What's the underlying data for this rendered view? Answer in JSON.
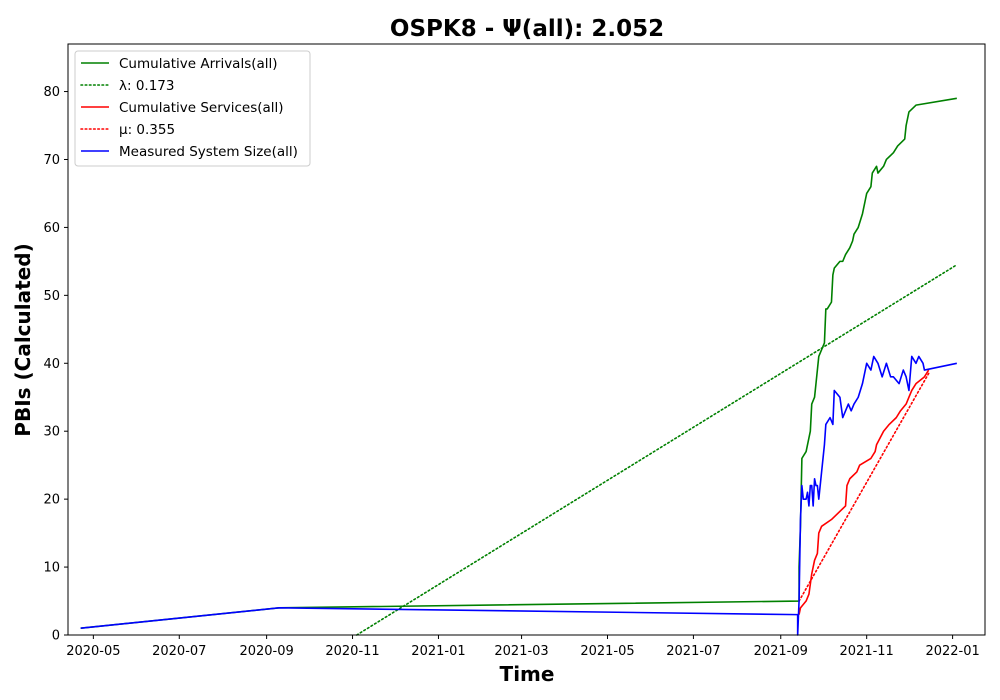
{
  "chart_data": {
    "type": "line",
    "title": "OSPK8 -  Ψ(all): 2.052",
    "xlabel": "Time",
    "ylabel": "PBIs (Calculated)",
    "x_type": "date",
    "xlim": [
      "2020-04-13",
      "2022-01-24"
    ],
    "ylim": [
      0,
      87
    ],
    "x_ticks": [
      "2020-05-01",
      "2020-07-01",
      "2020-09-01",
      "2020-11-01",
      "2021-01-01",
      "2021-03-01",
      "2021-05-01",
      "2021-07-01",
      "2021-09-01",
      "2021-11-01",
      "2022-01-01"
    ],
    "x_tick_labels": [
      "2020-05",
      "2020-07",
      "2020-09",
      "2020-11",
      "2021-01",
      "2021-03",
      "2021-05",
      "2021-07",
      "2021-09",
      "2021-11",
      "2022-01"
    ],
    "y_ticks": [
      0,
      10,
      20,
      30,
      40,
      50,
      60,
      70,
      80
    ],
    "y_tick_labels": [
      "0",
      "10",
      "20",
      "30",
      "40",
      "50",
      "60",
      "70",
      "80"
    ],
    "grid": false,
    "legend_position": "top-left",
    "series": [
      {
        "name": "Cumulative Arrivals(all)",
        "color": "#008000",
        "style": "solid",
        "points": [
          [
            "2020-04-22",
            1
          ],
          [
            "2020-09-10",
            4
          ],
          [
            "2021-09-14",
            5
          ],
          [
            "2021-09-14",
            10
          ],
          [
            "2021-09-15",
            16
          ],
          [
            "2021-09-16",
            26
          ],
          [
            "2021-09-19",
            27
          ],
          [
            "2021-09-21",
            29
          ],
          [
            "2021-09-22",
            30
          ],
          [
            "2021-09-23",
            34
          ],
          [
            "2021-09-25",
            35
          ],
          [
            "2021-09-26",
            37
          ],
          [
            "2021-09-28",
            41
          ],
          [
            "2021-09-30",
            42
          ],
          [
            "2021-10-02",
            43
          ],
          [
            "2021-10-03",
            48
          ],
          [
            "2021-10-04",
            48
          ],
          [
            "2021-10-07",
            49
          ],
          [
            "2021-10-08",
            53
          ],
          [
            "2021-10-09",
            54
          ],
          [
            "2021-10-13",
            55
          ],
          [
            "2021-10-15",
            55
          ],
          [
            "2021-10-17",
            56
          ],
          [
            "2021-10-20",
            57
          ],
          [
            "2021-10-22",
            58
          ],
          [
            "2021-10-23",
            59
          ],
          [
            "2021-10-26",
            60
          ],
          [
            "2021-10-29",
            62
          ],
          [
            "2021-10-31",
            64
          ],
          [
            "2021-11-01",
            65
          ],
          [
            "2021-11-04",
            66
          ],
          [
            "2021-11-05",
            68
          ],
          [
            "2021-11-08",
            69
          ],
          [
            "2021-11-09",
            68
          ],
          [
            "2021-11-13",
            69
          ],
          [
            "2021-11-15",
            70
          ],
          [
            "2021-11-20",
            71
          ],
          [
            "2021-11-23",
            72
          ],
          [
            "2021-11-28",
            73
          ],
          [
            "2021-11-29",
            75
          ],
          [
            "2021-12-01",
            77
          ],
          [
            "2021-12-06",
            78
          ],
          [
            "2022-01-04",
            79
          ]
        ]
      },
      {
        "name": "λ: 0.173",
        "color": "#008000",
        "style": "dotted",
        "points": [
          [
            "2020-11-04",
            0
          ],
          [
            "2022-01-04",
            54.5
          ]
        ]
      },
      {
        "name": "Cumulative Services(all)",
        "color": "#ff0000",
        "style": "solid",
        "points": [
          [
            "2021-09-14",
            3
          ],
          [
            "2021-09-15",
            4
          ],
          [
            "2021-09-19",
            5
          ],
          [
            "2021-09-21",
            6
          ],
          [
            "2021-09-23",
            9
          ],
          [
            "2021-09-25",
            11
          ],
          [
            "2021-09-27",
            12
          ],
          [
            "2021-09-28",
            15
          ],
          [
            "2021-09-30",
            16
          ],
          [
            "2021-10-07",
            17
          ],
          [
            "2021-10-17",
            19
          ],
          [
            "2021-10-18",
            22
          ],
          [
            "2021-10-20",
            23
          ],
          [
            "2021-10-25",
            24
          ],
          [
            "2021-10-27",
            25
          ],
          [
            "2021-11-04",
            26
          ],
          [
            "2021-11-07",
            27
          ],
          [
            "2021-11-08",
            28
          ],
          [
            "2021-11-13",
            30
          ],
          [
            "2021-11-17",
            31
          ],
          [
            "2021-11-22",
            32
          ],
          [
            "2021-11-25",
            33
          ],
          [
            "2021-11-29",
            34
          ],
          [
            "2021-12-01",
            35
          ],
          [
            "2021-12-03",
            36
          ],
          [
            "2021-12-06",
            37
          ],
          [
            "2021-12-12",
            38
          ],
          [
            "2021-12-15",
            39
          ]
        ]
      },
      {
        "name": "μ: 0.355",
        "color": "#ff0000",
        "style": "dotted",
        "points": [
          [
            "2021-09-14",
            5
          ],
          [
            "2021-12-15",
            38.5
          ]
        ]
      },
      {
        "name": "Measured System Size(all)",
        "color": "#0000ff",
        "style": "solid",
        "points": [
          [
            "2020-04-22",
            1
          ],
          [
            "2020-09-10",
            4
          ],
          [
            "2021-09-13",
            3
          ],
          [
            "2021-09-13",
            0
          ],
          [
            "2021-09-14",
            5
          ],
          [
            "2021-09-15",
            17
          ],
          [
            "2021-09-16",
            22
          ],
          [
            "2021-09-17",
            20
          ],
          [
            "2021-09-19",
            20
          ],
          [
            "2021-09-20",
            21
          ],
          [
            "2021-09-21",
            19
          ],
          [
            "2021-09-22",
            22
          ],
          [
            "2021-09-23",
            22
          ],
          [
            "2021-09-24",
            19
          ],
          [
            "2021-09-25",
            23
          ],
          [
            "2021-09-26",
            22
          ],
          [
            "2021-09-27",
            22
          ],
          [
            "2021-09-28",
            20
          ],
          [
            "2021-09-30",
            24
          ],
          [
            "2021-10-01",
            26
          ],
          [
            "2021-10-02",
            28
          ],
          [
            "2021-10-03",
            31
          ],
          [
            "2021-10-06",
            32
          ],
          [
            "2021-10-08",
            31
          ],
          [
            "2021-10-09",
            36
          ],
          [
            "2021-10-13",
            35
          ],
          [
            "2021-10-15",
            32
          ],
          [
            "2021-10-17",
            33
          ],
          [
            "2021-10-19",
            34
          ],
          [
            "2021-10-21",
            33
          ],
          [
            "2021-10-23",
            34
          ],
          [
            "2021-10-26",
            35
          ],
          [
            "2021-10-29",
            37
          ],
          [
            "2021-11-01",
            40
          ],
          [
            "2021-11-04",
            39
          ],
          [
            "2021-11-06",
            41
          ],
          [
            "2021-11-09",
            40
          ],
          [
            "2021-11-12",
            38
          ],
          [
            "2021-11-15",
            40
          ],
          [
            "2021-11-18",
            38
          ],
          [
            "2021-11-20",
            38
          ],
          [
            "2021-11-24",
            37
          ],
          [
            "2021-11-27",
            39
          ],
          [
            "2021-11-29",
            38
          ],
          [
            "2021-12-01",
            36
          ],
          [
            "2021-12-03",
            41
          ],
          [
            "2021-12-06",
            40
          ],
          [
            "2021-12-08",
            41
          ],
          [
            "2021-12-11",
            40
          ],
          [
            "2021-12-12",
            39
          ],
          [
            "2022-01-04",
            40
          ]
        ]
      }
    ]
  }
}
